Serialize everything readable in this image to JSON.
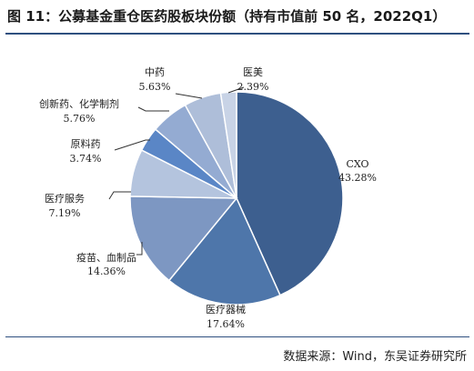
{
  "figure": {
    "title": "图 11：公募基金重仓医药股板块份额（持有市值前 50 名，2022Q1）",
    "source": "数据来源：Wind，东吴证券研究所"
  },
  "chart_data": {
    "type": "pie",
    "title": "图 11：公募基金重仓医药股板块份额（持有市值前 50 名，2022Q1）",
    "slices": [
      {
        "name": "CXO",
        "value": 43.28,
        "label": "43.28%",
        "color": "#3d5f8f"
      },
      {
        "name": "医疗器械",
        "value": 17.64,
        "label": "17.64%",
        "color": "#4e76aa"
      },
      {
        "name": "疫苗、血制品",
        "value": 14.36,
        "label": "14.36%",
        "color": "#7d97c2"
      },
      {
        "name": "医疗服务",
        "value": 7.19,
        "label": "7.19%",
        "color": "#b4c4de"
      },
      {
        "name": "原料药",
        "value": 3.74,
        "label": "3.74%",
        "color": "#5a86c6"
      },
      {
        "name": "创新药、化学制剂",
        "value": 5.76,
        "label": "5.76%",
        "color": "#94abd2"
      },
      {
        "name": "中药",
        "value": 5.63,
        "label": "5.63%",
        "color": "#aebed9"
      },
      {
        "name": "医美",
        "value": 2.39,
        "label": "2.39%",
        "color": "#c8d3e6"
      }
    ]
  }
}
